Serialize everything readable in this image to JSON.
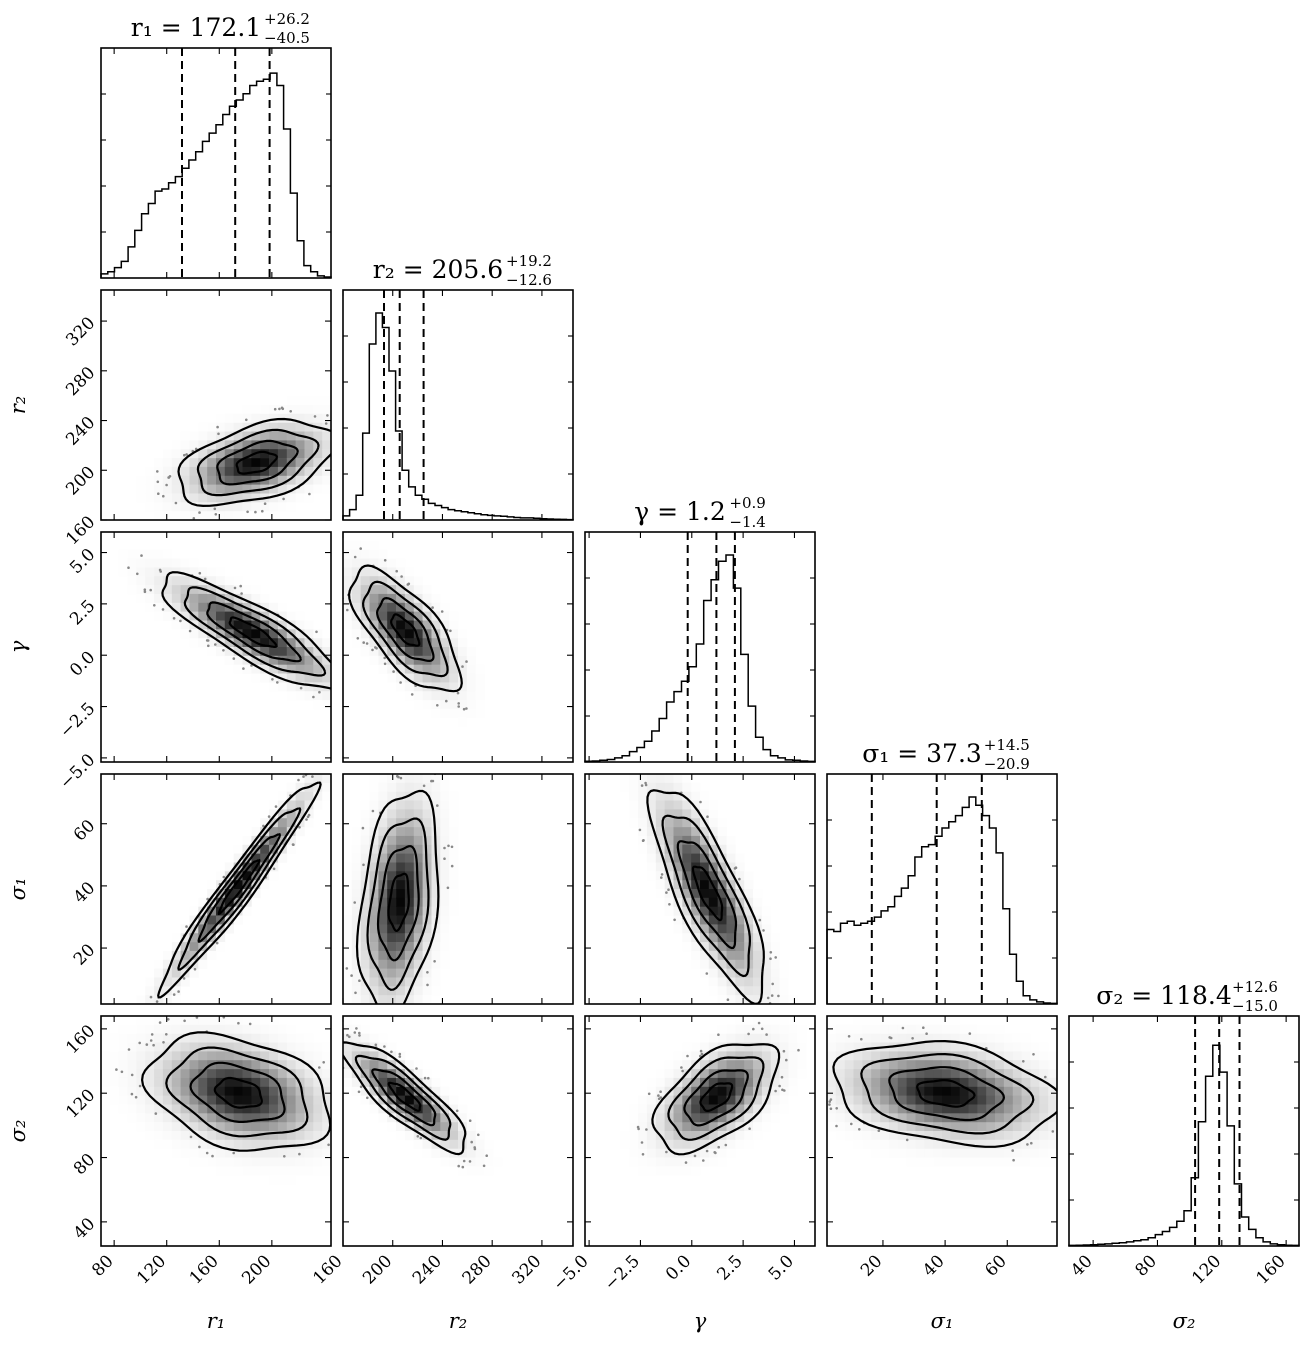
{
  "chart_data": {
    "type": "corner",
    "params": [
      {
        "key": "r1",
        "label": "r₁",
        "range": [
          70,
          245
        ],
        "ticks": [
          80,
          120,
          160,
          200
        ],
        "tick_labels": [
          "80",
          "120",
          "160",
          "200"
        ],
        "median": 172.1,
        "q16": 131.6,
        "q84": 198.3,
        "title": "r₁ = 172.1",
        "plus": "+26.2",
        "minus": "−40.5",
        "hist": [
          0.02,
          0.03,
          0.05,
          0.08,
          0.15,
          0.23,
          0.31,
          0.36,
          0.42,
          0.43,
          0.46,
          0.49,
          0.53,
          0.57,
          0.61,
          0.66,
          0.7,
          0.74,
          0.79,
          0.83,
          0.86,
          0.89,
          0.93,
          0.95,
          0.96,
          0.99,
          0.93,
          0.72,
          0.41,
          0.18,
          0.06,
          0.03,
          0.01,
          0.005
        ]
      },
      {
        "key": "r2",
        "label": "r₂",
        "range": [
          160,
          345
        ],
        "ticks": [
          160,
          200,
          240,
          280,
          320
        ],
        "tick_labels": [
          "160",
          "200",
          "240",
          "280",
          "320"
        ],
        "median": 205.6,
        "q16": 193.0,
        "q84": 224.8,
        "title": "r₂ = 205.6",
        "plus": "+19.2",
        "minus": "−12.6",
        "hist": [
          0.02,
          0.05,
          0.12,
          0.42,
          0.85,
          1.0,
          0.93,
          0.72,
          0.43,
          0.24,
          0.16,
          0.12,
          0.1,
          0.08,
          0.07,
          0.06,
          0.05,
          0.045,
          0.04,
          0.035,
          0.03,
          0.025,
          0.022,
          0.02,
          0.018,
          0.015,
          0.012,
          0.01,
          0.01,
          0.008,
          0.006,
          0.005,
          0.004,
          0.003,
          0.002
        ]
      },
      {
        "key": "gamma",
        "label": "γ",
        "range": [
          -5.2,
          6.0
        ],
        "ticks": [
          -5.0,
          -2.5,
          0.0,
          2.5,
          5.0
        ],
        "tick_labels": [
          "−5.0",
          "−2.5",
          "0.0",
          "2.5",
          "5.0"
        ],
        "median": 1.2,
        "q16": -0.2,
        "q84": 2.1,
        "title": "γ = 1.2",
        "plus": "+0.9",
        "minus": "−1.4",
        "hist": [
          0.004,
          0.005,
          0.008,
          0.012,
          0.02,
          0.03,
          0.05,
          0.07,
          0.1,
          0.15,
          0.21,
          0.29,
          0.34,
          0.39,
          0.46,
          0.57,
          0.78,
          0.88,
          0.97,
          1.0,
          0.84,
          0.52,
          0.27,
          0.12,
          0.06,
          0.03,
          0.02,
          0.01,
          0.008,
          0.005,
          0.003
        ]
      },
      {
        "key": "sigma1",
        "label": "σ₁",
        "range": [
          2,
          76
        ],
        "ticks": [
          20,
          40,
          60
        ],
        "tick_labels": [
          "20",
          "40",
          "60"
        ],
        "median": 37.3,
        "q16": 16.4,
        "q84": 51.8,
        "title": "σ₁ = 37.3",
        "plus": "+14.5",
        "minus": "−20.9",
        "hist": [
          0.36,
          0.35,
          0.39,
          0.4,
          0.38,
          0.39,
          0.4,
          0.42,
          0.45,
          0.47,
          0.52,
          0.56,
          0.62,
          0.71,
          0.76,
          0.77,
          0.81,
          0.85,
          0.88,
          0.91,
          0.95,
          1.0,
          0.96,
          0.91,
          0.85,
          0.73,
          0.46,
          0.24,
          0.11,
          0.04,
          0.02,
          0.01,
          0.005,
          0.003
        ]
      },
      {
        "key": "sigma2",
        "label": "σ₂",
        "range": [
          25,
          168
        ],
        "ticks": [
          40,
          80,
          120,
          160
        ],
        "tick_labels": [
          "40",
          "80",
          "120",
          "160"
        ],
        "median": 118.4,
        "q16": 103.4,
        "q84": 131.0,
        "title": "σ₂ = 118.4",
        "plus": "+12.6",
        "minus": "−15.0",
        "hist": [
          0.003,
          0.004,
          0.005,
          0.006,
          0.008,
          0.01,
          0.013,
          0.016,
          0.02,
          0.025,
          0.03,
          0.04,
          0.055,
          0.07,
          0.09,
          0.12,
          0.17,
          0.33,
          0.6,
          0.82,
          0.97,
          0.84,
          0.58,
          0.3,
          0.14,
          0.08,
          0.04,
          0.02,
          0.01,
          0.006,
          0.004,
          0.003
        ]
      }
    ],
    "pairs": [
      {
        "x": "r1",
        "y": "r2",
        "mean": [
          188,
          206
        ],
        "sd": [
          30,
          17
        ],
        "corr": 0.45
      },
      {
        "x": "r1",
        "y": "gamma",
        "mean": [
          185,
          1.1
        ],
        "sd": [
          35,
          1.4
        ],
        "corr": -0.85
      },
      {
        "x": "r2",
        "y": "gamma",
        "mean": [
          210,
          1.2
        ],
        "sd": [
          22,
          1.5
        ],
        "corr": -0.7
      },
      {
        "x": "r1",
        "y": "sigma1",
        "mean": [
          175,
          40
        ],
        "sd": [
          30,
          17
        ],
        "corr": 0.97
      },
      {
        "x": "r2",
        "y": "sigma1",
        "mean": [
          205,
          35
        ],
        "sd": [
          16,
          18
        ],
        "corr": 0.3
      },
      {
        "x": "gamma",
        "y": "sigma1",
        "mean": [
          0.8,
          38
        ],
        "sd": [
          1.4,
          17
        ],
        "corr": -0.8
      },
      {
        "x": "r1",
        "y": "sigma2",
        "mean": [
          175,
          120
        ],
        "sd": [
          35,
          18
        ],
        "corr": -0.3
      },
      {
        "x": "r2",
        "y": "sigma2",
        "mean": [
          210,
          118
        ],
        "sd": [
          25,
          17
        ],
        "corr": -0.85
      },
      {
        "x": "gamma",
        "y": "sigma2",
        "mean": [
          1.2,
          118
        ],
        "sd": [
          1.5,
          17
        ],
        "corr": 0.55
      },
      {
        "x": "sigma1",
        "y": "sigma2",
        "mean": [
          40,
          120
        ],
        "sd": [
          18,
          16
        ],
        "corr": -0.25
      }
    ],
    "contour_levels_sigma": [
      0.5,
      1.0,
      1.5,
      2.0
    ],
    "quantile_lines": "dashed"
  }
}
